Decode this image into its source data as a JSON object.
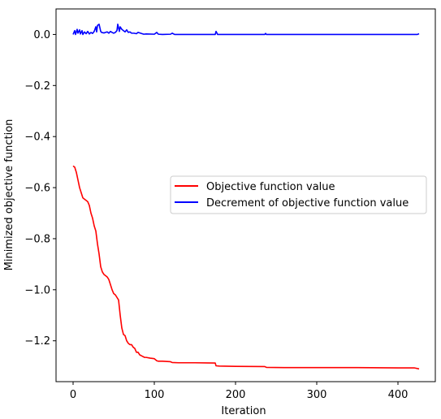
{
  "chart_data": {
    "type": "line",
    "title": "",
    "xlabel": "Iteration",
    "ylabel": "Minimized objective function",
    "xlim": [
      -21,
      446
    ],
    "ylim": [
      -1.36,
      0.1
    ],
    "xticks": [
      0,
      100,
      200,
      300,
      400
    ],
    "xtick_labels": [
      "0",
      "100",
      "200",
      "300",
      "400"
    ],
    "yticks": [
      0.0,
      -0.2,
      -0.4,
      -0.6,
      -0.8,
      -1.0,
      -1.2
    ],
    "ytick_labels": [
      "0.0",
      "−0.2",
      "−0.4",
      "−0.6",
      "−0.8",
      "−1.0",
      "−1.2"
    ],
    "grid": false,
    "legend": {
      "position": "center-right"
    },
    "series": [
      {
        "name": "Objective function value",
        "color": "#ff0000",
        "x": [
          0,
          2,
          4,
          6,
          8,
          10,
          12,
          14,
          16,
          18,
          20,
          22,
          24,
          26,
          28,
          30,
          32,
          34,
          36,
          38,
          40,
          42,
          44,
          46,
          48,
          50,
          52,
          54,
          56,
          58,
          60,
          62,
          64,
          66,
          68,
          70,
          72,
          74,
          76,
          78,
          80,
          82,
          85,
          88,
          90,
          95,
          100,
          103,
          105,
          110,
          120,
          122,
          130,
          150,
          175,
          176,
          180,
          200,
          236,
          238,
          260,
          300,
          350,
          400,
          420,
          426
        ],
        "y": [
          -0.515,
          -0.52,
          -0.54,
          -0.57,
          -0.6,
          -0.62,
          -0.64,
          -0.645,
          -0.65,
          -0.655,
          -0.67,
          -0.7,
          -0.72,
          -0.75,
          -0.77,
          -0.82,
          -0.86,
          -0.91,
          -0.93,
          -0.94,
          -0.945,
          -0.95,
          -0.96,
          -0.98,
          -1.0,
          -1.015,
          -1.02,
          -1.03,
          -1.04,
          -1.1,
          -1.15,
          -1.175,
          -1.18,
          -1.2,
          -1.21,
          -1.215,
          -1.215,
          -1.225,
          -1.23,
          -1.245,
          -1.245,
          -1.255,
          -1.26,
          -1.265,
          -1.265,
          -1.268,
          -1.27,
          -1.278,
          -1.28,
          -1.28,
          -1.282,
          -1.285,
          -1.286,
          -1.286,
          -1.287,
          -1.298,
          -1.299,
          -1.3,
          -1.301,
          -1.304,
          -1.305,
          -1.305,
          -1.305,
          -1.306,
          -1.306,
          -1.31
        ]
      },
      {
        "name": "Decrement of objective function value",
        "color": "#0000ff",
        "x": [
          0,
          2,
          3,
          5,
          6,
          8,
          9,
          11,
          12,
          14,
          16,
          18,
          20,
          22,
          24,
          26,
          28,
          29,
          30,
          32,
          34,
          35,
          38,
          40,
          42,
          44,
          46,
          48,
          50,
          52,
          54,
          55,
          57,
          58,
          60,
          62,
          64,
          66,
          68,
          70,
          72,
          75,
          78,
          80,
          85,
          87,
          90,
          100,
          103,
          105,
          110,
          120,
          122,
          125,
          150,
          175,
          176,
          178,
          200,
          236,
          237,
          238,
          260,
          300,
          350,
          400,
          424,
          426
        ],
        "y": [
          0.0,
          0.015,
          0.0,
          0.02,
          0.005,
          0.018,
          0.002,
          0.015,
          0.0,
          0.01,
          0.003,
          0.012,
          0.002,
          0.008,
          0.004,
          0.012,
          0.03,
          0.01,
          0.035,
          0.04,
          0.012,
          0.008,
          0.006,
          0.008,
          0.01,
          0.005,
          0.012,
          0.008,
          0.005,
          0.008,
          0.015,
          0.04,
          0.012,
          0.03,
          0.02,
          0.015,
          0.01,
          0.018,
          0.008,
          0.01,
          0.005,
          0.005,
          0.003,
          0.008,
          0.003,
          0.001,
          0.002,
          0.001,
          0.008,
          0.001,
          0.0,
          0.001,
          0.005,
          0.0,
          0.0,
          0.0,
          0.012,
          0.0,
          0.0,
          0.0,
          0.004,
          0.0,
          0.0,
          0.0,
          0.0,
          0.0,
          0.0,
          0.003
        ]
      }
    ]
  }
}
